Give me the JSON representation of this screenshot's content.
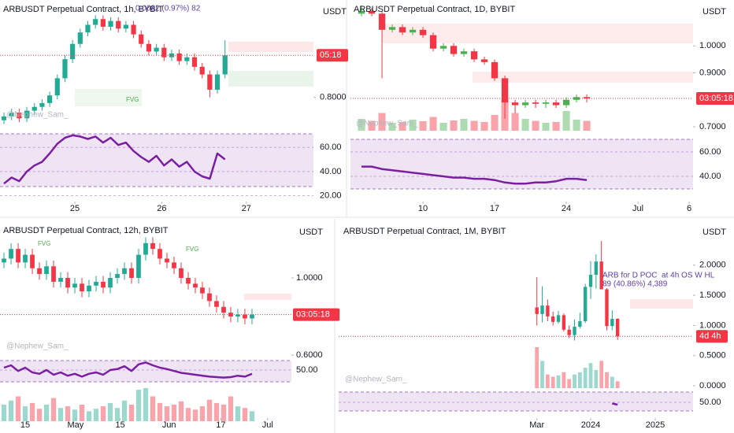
{
  "chart_data": [
    {
      "type": "candlestick",
      "title": "ARBUSDT Perpetual Contract, 1h, BYBIT",
      "unit": "USDT",
      "countdown": "05:18",
      "watermark": "@Nephew_Sam_",
      "up_color": "#22ab94",
      "down_color": "#f23645",
      "rsi_color": "#7b1fa2",
      "annotations": [
        "0.0082 (0.97%) 82",
        "FVG"
      ],
      "xlim": [
        -0.52,
        40.6
      ],
      "xticks": [
        {
          "value": 9.3,
          "label": "25"
        },
        {
          "value": 20.7,
          "label": "26"
        },
        {
          "value": 31.8,
          "label": "27"
        }
      ],
      "ylim": [
        0.785,
        0.851
      ],
      "yticks": [
        {
          "value": 0.8,
          "label": "0.8000"
        }
      ],
      "open": [
        0.788,
        0.79,
        0.792,
        0.789,
        0.793,
        0.795,
        0.797,
        0.801,
        0.81,
        0.82,
        0.828,
        0.834,
        0.838,
        0.841,
        0.837,
        0.84,
        0.836,
        0.838,
        0.833,
        0.828,
        0.824,
        0.826,
        0.821,
        0.823,
        0.819,
        0.821,
        0.816,
        0.812,
        0.804,
        0.812
      ],
      "high": [
        0.792,
        0.794,
        0.794,
        0.795,
        0.797,
        0.799,
        0.803,
        0.812,
        0.822,
        0.83,
        0.836,
        0.84,
        0.843,
        0.843,
        0.842,
        0.842,
        0.84,
        0.84,
        0.835,
        0.83,
        0.828,
        0.828,
        0.825,
        0.825,
        0.823,
        0.823,
        0.818,
        0.814,
        0.814,
        0.83
      ],
      "low": [
        0.786,
        0.788,
        0.787,
        0.787,
        0.791,
        0.793,
        0.795,
        0.799,
        0.808,
        0.818,
        0.826,
        0.832,
        0.836,
        0.835,
        0.835,
        0.834,
        0.834,
        0.831,
        0.826,
        0.822,
        0.822,
        0.819,
        0.819,
        0.817,
        0.817,
        0.814,
        0.81,
        0.8,
        0.802,
        0.81
      ],
      "close": [
        0.79,
        0.792,
        0.789,
        0.793,
        0.795,
        0.797,
        0.801,
        0.81,
        0.82,
        0.828,
        0.834,
        0.838,
        0.841,
        0.837,
        0.84,
        0.836,
        0.838,
        0.833,
        0.828,
        0.824,
        0.826,
        0.821,
        0.823,
        0.819,
        0.821,
        0.816,
        0.812,
        0.804,
        0.812,
        0.822
      ],
      "rsi": [
        30,
        35,
        32,
        40,
        45,
        48,
        55,
        63,
        68,
        70,
        69,
        67,
        69,
        64,
        68,
        62,
        64,
        57,
        52,
        48,
        53,
        45,
        50,
        44,
        48,
        40,
        36,
        34,
        55,
        50
      ],
      "rsi_ylim": [
        27.5,
        71.25
      ],
      "rsi_yticks": [
        {
          "value": 60,
          "label": "60.00"
        },
        {
          "value": 40,
          "label": "40.00"
        },
        {
          "value": 20,
          "label": "20.00"
        }
      ]
    },
    {
      "type": "candlestick",
      "title": "ARBUSDT Perpetual Contract, 1D, BYBIT",
      "unit": "USDT",
      "countdown": "03:05:18",
      "watermark": "@Nephew_Sam_",
      "up_color": "#4caf50",
      "down_color": "#f23645",
      "rsi_color": "#7b1fa2",
      "xlim": [
        2.92,
        36.38
      ],
      "xticks": [
        10,
        17,
        24,
        {
          "value": 31,
          "label": "Jul"
        },
        {
          "value": 36,
          "label": "6"
        }
      ],
      "x": [
        4,
        5,
        6,
        7,
        8,
        9,
        10,
        11,
        12,
        13,
        14,
        15,
        16,
        17,
        18,
        19,
        20,
        21,
        22,
        23,
        24,
        25,
        26
      ],
      "ylim": [
        0.6735,
        1.1706
      ],
      "yticks": [
        {
          "value": 1.0,
          "label": "1.0000"
        },
        {
          "value": 0.9,
          "label": "0.9000"
        },
        {
          "value": 0.7,
          "label": "0.7000"
        }
      ],
      "open": [
        1.12,
        1.13,
        1.12,
        1.06,
        1.07,
        1.05,
        1.06,
        1.04,
        0.99,
        1.0,
        0.97,
        0.98,
        0.95,
        0.94,
        0.88,
        0.79,
        0.78,
        0.79,
        0.785,
        0.79,
        0.78,
        0.8,
        0.81
      ],
      "high": [
        1.15,
        1.14,
        1.13,
        1.08,
        1.08,
        1.07,
        1.07,
        1.05,
        1.01,
        1.01,
        0.99,
        0.99,
        0.96,
        0.95,
        0.89,
        0.8,
        0.8,
        0.8,
        0.8,
        0.8,
        0.81,
        0.82,
        0.82
      ],
      "low": [
        1.11,
        1.11,
        0.88,
        1.05,
        1.04,
        1.04,
        1.03,
        0.98,
        0.98,
        0.96,
        0.96,
        0.94,
        0.93,
        0.87,
        0.73,
        0.75,
        0.77,
        0.77,
        0.77,
        0.77,
        0.77,
        0.79,
        0.79
      ],
      "close": [
        1.13,
        1.12,
        1.06,
        1.07,
        1.05,
        1.06,
        1.04,
        0.99,
        1.0,
        0.97,
        0.98,
        0.95,
        0.94,
        0.88,
        0.79,
        0.78,
        0.79,
        0.785,
        0.79,
        0.78,
        0.8,
        0.81,
        0.805
      ],
      "volume": [
        30,
        25,
        45,
        20,
        22,
        28,
        24,
        35,
        20,
        26,
        30,
        25,
        22,
        40,
        80,
        45,
        30,
        25,
        20,
        22,
        50,
        28,
        25
      ],
      "volume_lim": [
        0,
        80
      ],
      "rsi": [
        48,
        48,
        46,
        45,
        44,
        43,
        42,
        41,
        40,
        39,
        39,
        38,
        38,
        37,
        35,
        34,
        34,
        35,
        35,
        36,
        38,
        38,
        37
      ],
      "rsi_ylim": [
        29.7,
        70.3
      ],
      "rsi_yticks": [
        {
          "value": 60,
          "label": "60.00"
        },
        {
          "value": 40,
          "label": "40.00"
        }
      ]
    },
    {
      "type": "candlestick",
      "title": "ARBUSDT Perpetual Contract, 12h, BYBIT",
      "unit": "USDT",
      "countdown": "03:05:18",
      "watermark": "@Nephew_Sam_",
      "up_color": "#22ab94",
      "down_color": "#f23645",
      "rsi_color": "#7b1fa2",
      "annotations": [
        "FVG",
        "FVG"
      ],
      "xlim": [
        -0.56,
        40.56
      ],
      "xticks": [
        {
          "value": 3,
          "label": "15"
        },
        {
          "value": 10.1,
          "label": "May"
        },
        {
          "value": 16.4,
          "label": "15"
        },
        {
          "value": 23.3,
          "label": "Jun"
        },
        {
          "value": 30.6,
          "label": "17"
        },
        {
          "value": 37.2,
          "label": "Jul"
        }
      ],
      "ylim": [
        0.584,
        1.265
      ],
      "yticks": [
        {
          "value": 1.0,
          "label": "1.0000"
        },
        {
          "value": 0.6,
          "label": "0.6000"
        }
      ],
      "open": [
        1.08,
        1.1,
        1.15,
        1.08,
        1.12,
        1.05,
        1.02,
        1.06,
        0.98,
        1.0,
        0.95,
        0.97,
        0.93,
        0.96,
        0.98,
        0.95,
        1.0,
        1.02,
        1.05,
        1.0,
        1.12,
        1.18,
        1.15,
        1.1,
        1.08,
        1.05,
        1.0,
        0.97,
        0.95,
        0.92,
        0.88,
        0.85,
        0.82,
        0.8,
        0.81,
        0.79
      ],
      "high": [
        1.13,
        1.18,
        1.18,
        1.15,
        1.15,
        1.08,
        1.09,
        1.09,
        1.03,
        1.03,
        1.0,
        1.0,
        0.99,
        1.01,
        1.01,
        1.03,
        1.05,
        1.08,
        1.08,
        1.15,
        1.21,
        1.21,
        1.18,
        1.13,
        1.11,
        1.08,
        1.03,
        1.0,
        0.98,
        0.95,
        0.91,
        0.88,
        0.85,
        0.84,
        0.84,
        0.84
      ],
      "low": [
        1.05,
        1.07,
        1.05,
        1.05,
        1.02,
        0.99,
        0.99,
        0.95,
        0.95,
        0.92,
        0.92,
        0.9,
        0.9,
        0.93,
        0.92,
        0.92,
        0.97,
        0.99,
        0.97,
        0.97,
        1.09,
        1.12,
        1.07,
        1.05,
        1.02,
        0.97,
        0.94,
        0.92,
        0.89,
        0.85,
        0.82,
        0.79,
        0.77,
        0.77,
        0.76,
        0.76
      ],
      "close": [
        1.1,
        1.15,
        1.08,
        1.12,
        1.05,
        1.02,
        1.06,
        0.98,
        1.0,
        0.95,
        0.97,
        0.93,
        0.96,
        0.98,
        0.95,
        1.0,
        1.02,
        1.05,
        1.0,
        1.12,
        1.18,
        1.15,
        1.1,
        1.08,
        1.05,
        1.0,
        0.97,
        0.95,
        0.92,
        0.88,
        0.85,
        0.82,
        0.8,
        0.81,
        0.79,
        0.81
      ],
      "volume": [
        20,
        25,
        30,
        18,
        22,
        15,
        20,
        28,
        16,
        18,
        14,
        20,
        12,
        15,
        18,
        22,
        16,
        25,
        20,
        38,
        40,
        30,
        22,
        18,
        20,
        24,
        16,
        14,
        18,
        26,
        22,
        20,
        30,
        18,
        16,
        12
      ],
      "volume_lim": [
        0,
        40
      ],
      "rsi": [
        55,
        60,
        48,
        55,
        45,
        42,
        50,
        40,
        45,
        38,
        42,
        36,
        42,
        45,
        40,
        50,
        52,
        58,
        48,
        62,
        66,
        60,
        55,
        52,
        48,
        44,
        42,
        40,
        38,
        36,
        35,
        34,
        35,
        38,
        36,
        42
      ],
      "rsi_ylim": [
        25,
        70
      ],
      "rsi_yticks": [
        {
          "value": 50,
          "label": "50.00"
        }
      ]
    },
    {
      "type": "candlestick",
      "title": "ARBUSDT Perpetual Contract, 1M, BYBIT",
      "unit": "USDT",
      "countdown": "4d 4h",
      "watermark": "@Nephew_Sam_",
      "up_color": "#22ab94",
      "down_color": "#f23645",
      "rsi_color": "#7b1fa2",
      "annotations": [
        "ARB for D POC  at 4h OS W HL",
        "89 (40.86%) 4,389"
      ],
      "xlim": [
        -36.85,
        29.03
      ],
      "xticks": [
        {
          "value": 0,
          "label": "Mar"
        },
        {
          "value": 10,
          "label": "2024"
        },
        {
          "value": 22,
          "label": "2025"
        }
      ],
      "ylim": [
        -0.065,
        2.637
      ],
      "yticks": [
        {
          "value": 2.0,
          "label": "2.0000"
        },
        {
          "value": 1.5,
          "label": "1.5000"
        },
        {
          "value": 1.0,
          "label": "1.0000"
        },
        {
          "value": 0.5,
          "label": "0.5000"
        },
        {
          "value": 0,
          "label": "0.0000"
        }
      ],
      "open": [
        1.3,
        1.19,
        1.33,
        1.15,
        1.06,
        1.17,
        0.93,
        0.84,
        0.98,
        1.07,
        1.64,
        1.84,
        2.06,
        1.6,
        0.99,
        1.11
      ],
      "high": [
        1.8,
        1.65,
        1.43,
        1.23,
        1.24,
        1.2,
        1.0,
        1.1,
        1.21,
        1.69,
        2.07,
        2.18,
        2.4,
        1.62,
        1.25,
        1.12
      ],
      "low": [
        1.0,
        1.05,
        1.07,
        1.0,
        1.03,
        0.9,
        0.79,
        0.75,
        0.95,
        1.04,
        1.44,
        1.61,
        1.6,
        0.92,
        0.92,
        0.76
      ],
      "close": [
        1.19,
        1.33,
        1.15,
        1.06,
        1.17,
        0.93,
        0.84,
        0.98,
        1.07,
        1.64,
        1.84,
        2.06,
        1.6,
        0.99,
        1.11,
        0.82
      ],
      "volume": [
        90,
        60,
        30,
        25,
        28,
        35,
        20,
        30,
        35,
        45,
        55,
        40,
        60,
        35,
        25,
        15
      ],
      "volume_lim": [
        0,
        90
      ],
      "rsi": [
        null,
        null,
        null,
        null,
        null,
        null,
        null,
        null,
        null,
        null,
        null,
        null,
        null,
        null,
        47,
        44
      ],
      "rsi_ylim": [
        28,
        76
      ],
      "rsi_yticks": [
        {
          "value": 50,
          "label": "50.00"
        }
      ]
    }
  ]
}
